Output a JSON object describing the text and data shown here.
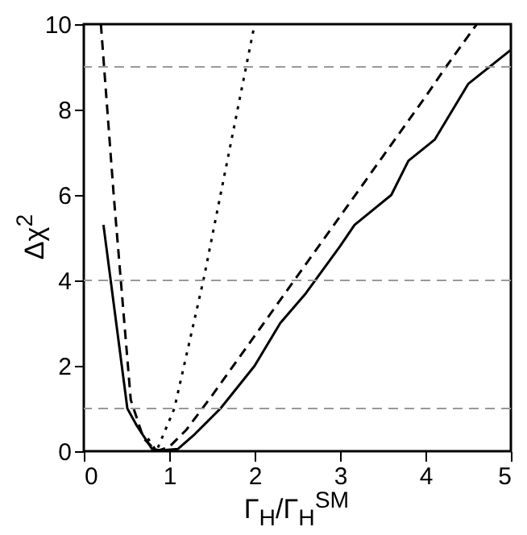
{
  "chart_data": {
    "type": "line",
    "xlabel": "Γ$_{H}$/Γ$_{H}$$^{SM}$",
    "ylabel": "Δχ$^{2}$",
    "xlim": [
      0,
      5
    ],
    "ylim": [
      0,
      10
    ],
    "xticks": [
      0,
      1,
      2,
      3,
      4,
      5
    ],
    "yticks": [
      0,
      2,
      4,
      6,
      8,
      10
    ],
    "series": [
      {
        "color": "#000000",
        "line_style": "solid",
        "x": [
          0.23,
          0.51,
          0.62,
          0.8,
          0.9,
          1.1,
          1.3,
          1.6,
          2.0,
          2.3,
          2.6,
          3.0,
          3.17,
          3.6,
          3.8,
          4.11,
          4.5,
          5.0
        ],
        "values": [
          5.3,
          1.0,
          0.6,
          0.05,
          0.02,
          0.05,
          0.4,
          1.0,
          2.0,
          3.0,
          3.7,
          4.8,
          5.3,
          6.0,
          6.8,
          7.3,
          8.6,
          9.4
        ]
      },
      {
        "color": "#000000",
        "line_style": "dashed",
        "x": [
          0.2,
          0.35,
          0.55,
          0.7,
          0.85,
          1.0,
          1.2,
          1.5,
          2.0,
          2.5,
          3.0,
          3.5,
          4.0,
          4.24,
          4.6
        ],
        "values": [
          10,
          6.0,
          1.2,
          0.3,
          0.0,
          0.1,
          0.5,
          1.3,
          2.7,
          4.1,
          5.5,
          6.9,
          8.3,
          9.0,
          10
        ]
      },
      {
        "color": "#000000",
        "line_style": "dotted",
        "x": [
          0.75,
          0.85,
          1.06,
          1.4,
          1.9,
          2.0
        ],
        "values": [
          0.3,
          0.0,
          1.0,
          4.0,
          9.0,
          10
        ]
      }
    ],
    "ref_lines": [
      {
        "axis": "y",
        "value": 1,
        "color": "#999999",
        "line_style": "dashed"
      },
      {
        "axis": "y",
        "value": 4,
        "color": "#999999",
        "line_style": "dashed"
      },
      {
        "axis": "y",
        "value": 9,
        "color": "#999999",
        "line_style": "dashed"
      }
    ]
  }
}
